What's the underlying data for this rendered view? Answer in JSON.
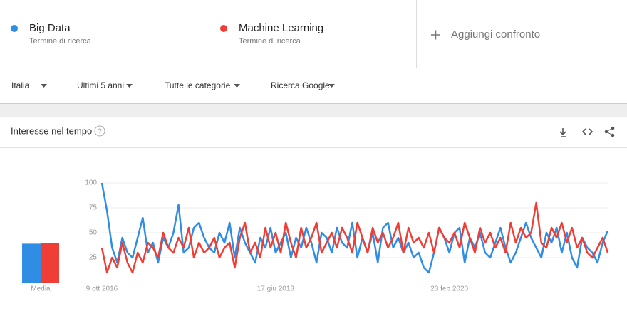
{
  "header": {
    "terms": [
      "Termine di ricerca",
      "Termine di ricerca"
    ],
    "add_compare": "Aggiungi confronto"
  },
  "filters": [
    "Italia",
    "Ultimi 5 anni",
    "Tutte le categorie",
    "Ricerca Google"
  ],
  "section_title": "Interesse nel tempo",
  "chart_data": [
    {
      "type": "line",
      "x": [
        "9 ott 2016",
        null,
        null,
        null,
        null,
        null,
        null,
        null,
        null,
        null,
        null,
        null,
        null,
        null,
        null,
        null,
        null,
        null,
        null,
        null,
        null,
        null,
        null,
        null,
        null,
        null,
        null,
        null,
        null,
        null,
        null,
        null,
        null,
        null,
        "17 giu 2018",
        null,
        null,
        null,
        null,
        null,
        null,
        null,
        null,
        null,
        null,
        null,
        null,
        null,
        null,
        null,
        null,
        null,
        null,
        null,
        null,
        null,
        null,
        null,
        null,
        null,
        null,
        null,
        null,
        null,
        null,
        null,
        null,
        null,
        "23 feb 2020",
        null,
        null,
        null,
        null,
        null,
        null,
        null,
        null,
        null,
        null,
        null,
        null,
        null,
        null,
        null,
        null,
        null,
        null,
        null,
        null,
        null,
        null,
        null,
        null,
        null,
        null,
        null,
        null,
        null,
        null,
        null
      ],
      "series": [
        {
          "name": "Big Data",
          "color": "#2f8de4",
          "values": [
            100,
            72,
            35,
            20,
            45,
            30,
            25,
            45,
            65,
            30,
            40,
            20,
            45,
            35,
            50,
            78,
            30,
            35,
            55,
            60,
            45,
            35,
            30,
            50,
            40,
            60,
            25,
            55,
            40,
            30,
            20,
            45,
            35,
            55,
            30,
            40,
            50,
            25,
            45,
            35,
            55,
            40,
            20,
            50,
            45,
            30,
            55,
            40,
            35,
            60,
            25,
            45,
            30,
            50,
            20,
            55,
            60,
            35,
            45,
            30,
            40,
            25,
            30,
            15,
            10,
            30,
            55,
            45,
            30,
            50,
            55,
            20,
            45,
            35,
            50,
            30,
            25,
            40,
            55,
            35,
            20,
            30,
            45,
            60,
            45,
            35,
            25,
            50,
            40,
            55,
            30,
            50,
            25,
            15,
            45,
            35,
            30,
            20,
            40,
            52
          ]
        },
        {
          "name": "Machine Learning",
          "color": "#ef3e36",
          "values": [
            35,
            10,
            25,
            15,
            40,
            20,
            10,
            30,
            20,
            40,
            35,
            25,
            50,
            35,
            30,
            45,
            35,
            55,
            25,
            40,
            30,
            35,
            45,
            25,
            35,
            40,
            15,
            45,
            60,
            30,
            40,
            25,
            55,
            35,
            50,
            30,
            60,
            40,
            25,
            55,
            35,
            45,
            60,
            30,
            40,
            50,
            35,
            55,
            45,
            30,
            60,
            45,
            30,
            55,
            40,
            50,
            35,
            45,
            60,
            30,
            55,
            40,
            45,
            35,
            50,
            30,
            55,
            45,
            40,
            50,
            35,
            60,
            45,
            30,
            55,
            40,
            50,
            35,
            45,
            30,
            60,
            40,
            55,
            45,
            50,
            80,
            40,
            35,
            55,
            45,
            60,
            40,
            55,
            35,
            45,
            30,
            25,
            35,
            45,
            30
          ]
        }
      ],
      "ylim": [
        0,
        100
      ],
      "yticks": [
        25,
        50,
        75,
        100
      ],
      "grid": true
    },
    {
      "type": "bar",
      "categories": [
        "Media"
      ],
      "series": [
        {
          "color": "#2f8de4",
          "values": [
            39
          ]
        },
        {
          "color": "#ef3e36",
          "values": [
            40
          ]
        }
      ],
      "ylim": [
        0,
        100
      ]
    }
  ]
}
